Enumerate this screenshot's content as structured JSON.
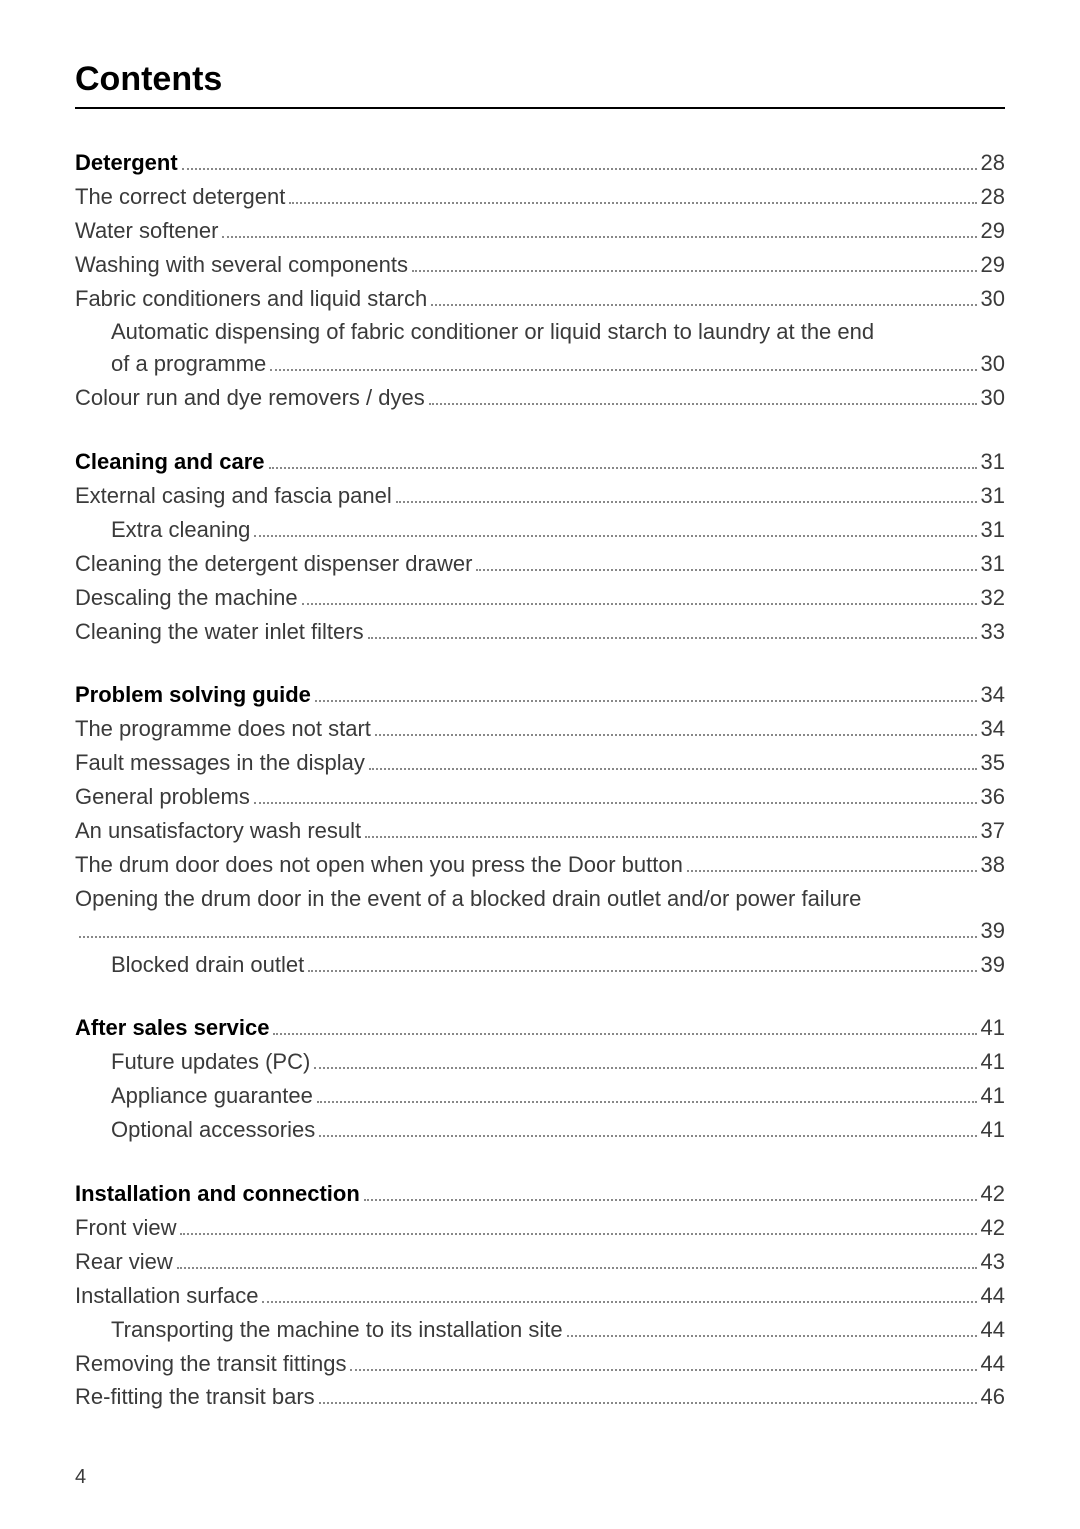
{
  "title": "Contents",
  "pageNumber": "4",
  "sections": [
    {
      "entries": [
        {
          "label": "Detergent",
          "page": "28",
          "bold": true,
          "indent": 0
        },
        {
          "label": "The correct detergent",
          "page": "28",
          "bold": false,
          "indent": 0
        },
        {
          "label": "Water softener",
          "page": "29",
          "bold": false,
          "indent": 0
        },
        {
          "label": "Washing with several components",
          "page": "29",
          "bold": false,
          "indent": 0
        },
        {
          "label": "Fabric conditioners and liquid starch",
          "page": "30",
          "bold": false,
          "indent": 0
        },
        {
          "wrapLine": "Automatic dispensing of fabric conditioner or liquid starch to laundry at the end",
          "indent": 1
        },
        {
          "label": "of a programme",
          "page": "30",
          "bold": false,
          "indent": 1
        },
        {
          "label": "Colour run and dye removers / dyes",
          "page": "30",
          "bold": false,
          "indent": 0
        }
      ]
    },
    {
      "entries": [
        {
          "label": "Cleaning and care",
          "page": "31",
          "bold": true,
          "indent": 0
        },
        {
          "label": "External casing and fascia panel",
          "page": "31",
          "bold": false,
          "indent": 0
        },
        {
          "label": "Extra cleaning",
          "page": "31",
          "bold": false,
          "indent": 1
        },
        {
          "label": "Cleaning the detergent dispenser drawer",
          "page": "31",
          "bold": false,
          "indent": 0
        },
        {
          "label": "Descaling the machine",
          "page": "32",
          "bold": false,
          "indent": 0
        },
        {
          "label": "Cleaning the water inlet filters",
          "page": "33",
          "bold": false,
          "indent": 0
        }
      ]
    },
    {
      "entries": [
        {
          "label": "Problem solving guide",
          "page": "34",
          "bold": true,
          "indent": 0
        },
        {
          "label": "The programme does not start",
          "page": "34",
          "bold": false,
          "indent": 0
        },
        {
          "label": "Fault messages in the display",
          "page": "35",
          "bold": false,
          "indent": 0
        },
        {
          "label": "General problems",
          "page": "36",
          "bold": false,
          "indent": 0
        },
        {
          "label": "An unsatisfactory wash result",
          "page": "37",
          "bold": false,
          "indent": 0
        },
        {
          "label": "The drum door does not open when you press the Door button",
          "page": "38",
          "bold": false,
          "indent": 0
        },
        {
          "wrapLine": "Opening the drum door in the event of a blocked drain outlet and/or power failure",
          "indent": 0
        },
        {
          "label": "",
          "page": "39",
          "bold": false,
          "indent": 0
        },
        {
          "label": "Blocked drain outlet",
          "page": "39",
          "bold": false,
          "indent": 1
        }
      ]
    },
    {
      "entries": [
        {
          "label": "After sales service",
          "page": "41",
          "bold": true,
          "indent": 0
        },
        {
          "label": "Future updates (PC)",
          "page": "41",
          "bold": false,
          "indent": 1
        },
        {
          "label": "Appliance guarantee",
          "page": "41",
          "bold": false,
          "indent": 1
        },
        {
          "label": "Optional accessories",
          "page": "41",
          "bold": false,
          "indent": 1
        }
      ]
    },
    {
      "entries": [
        {
          "label": "Installation and connection",
          "page": "42",
          "bold": true,
          "indent": 0
        },
        {
          "label": "Front view",
          "page": "42",
          "bold": false,
          "indent": 0
        },
        {
          "label": "Rear view",
          "page": "43",
          "bold": false,
          "indent": 0
        },
        {
          "label": "Installation surface",
          "page": "44",
          "bold": false,
          "indent": 0
        },
        {
          "label": "Transporting the machine to its installation site",
          "page": "44",
          "bold": false,
          "indent": 1
        },
        {
          "label": "Removing the transit fittings",
          "page": "44",
          "bold": false,
          "indent": 0
        },
        {
          "label": "Re-fitting the transit bars",
          "page": "46",
          "bold": false,
          "indent": 0
        }
      ]
    }
  ]
}
